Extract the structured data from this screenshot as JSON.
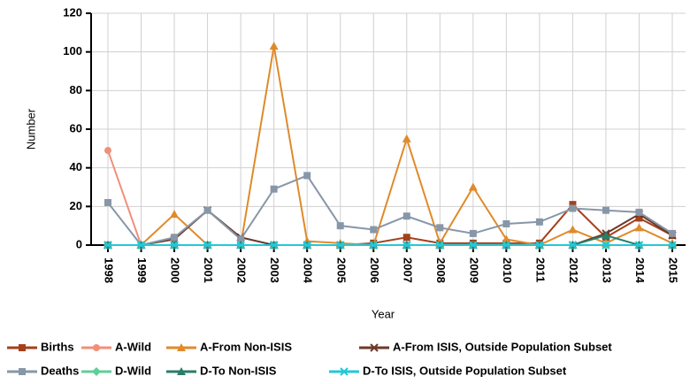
{
  "chart_data": {
    "type": "line",
    "y_label": "Number",
    "x_label": "Year",
    "categories": [
      "1998",
      "1999",
      "2000",
      "2001",
      "2002",
      "2003",
      "2004",
      "2005",
      "2006",
      "2007",
      "2008",
      "2009",
      "2010",
      "2011",
      "2012",
      "2013",
      "2014",
      "2015"
    ],
    "ylim": [
      0,
      120
    ],
    "yticks": [
      0,
      20,
      40,
      60,
      80,
      100,
      120
    ],
    "grid": true,
    "series": [
      {
        "name": "Births",
        "color": "#a5401b",
        "marker": "square",
        "values": [
          0,
          0,
          0,
          0,
          0,
          0,
          0,
          0,
          1,
          4,
          1,
          1,
          1,
          1,
          21,
          4,
          14,
          5
        ]
      },
      {
        "name": "A-Wild",
        "color": "#f0907a",
        "marker": "circle",
        "values": [
          49,
          0,
          0,
          0,
          0,
          0,
          0,
          0,
          0,
          0,
          0,
          0,
          0,
          0,
          0,
          0,
          0,
          0
        ]
      },
      {
        "name": "A-From Non-ISIS",
        "color": "#e08a2a",
        "marker": "triangle",
        "values": [
          0,
          0,
          16,
          0,
          0,
          103,
          2,
          1,
          0,
          55,
          1,
          30,
          3,
          0,
          8,
          1,
          9,
          1
        ]
      },
      {
        "name": "A-From ISIS, Outside Population Subset",
        "color": "#6b3a2a",
        "marker": "cross",
        "values": [
          0,
          0,
          3,
          18,
          4,
          0,
          0,
          0,
          0,
          0,
          0,
          0,
          0,
          0,
          0,
          6,
          16,
          5
        ]
      },
      {
        "name": "Deaths",
        "color": "#8797a8",
        "marker": "square",
        "values": [
          22,
          0,
          4,
          18,
          3,
          29,
          36,
          10,
          8,
          15,
          9,
          6,
          11,
          12,
          19,
          18,
          17,
          6
        ]
      },
      {
        "name": "D-Wild",
        "color": "#5fcf9a",
        "marker": "diamond",
        "values": [
          0,
          0,
          0,
          0,
          0,
          0,
          0,
          0,
          0,
          0,
          0,
          0,
          0,
          0,
          0,
          0,
          0,
          0
        ]
      },
      {
        "name": "D-To Non-ISIS",
        "color": "#2a7d6a",
        "marker": "triangle",
        "values": [
          0,
          0,
          0,
          0,
          0,
          0,
          0,
          0,
          0,
          0,
          0,
          0,
          0,
          0,
          0,
          5,
          0,
          0
        ]
      },
      {
        "name": "D-To ISIS, Outside Population Subset",
        "color": "#22c8d8",
        "marker": "cross",
        "values": [
          0,
          0,
          0,
          0,
          0,
          0,
          0,
          0,
          0,
          0,
          0,
          0,
          0,
          0,
          0,
          0,
          0,
          0
        ]
      }
    ]
  }
}
